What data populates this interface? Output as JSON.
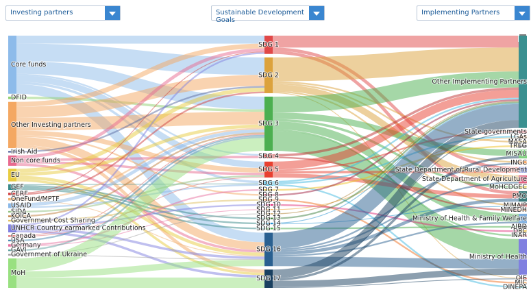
{
  "filters": [
    "Investing partners",
    "Sustainable Development Goals",
    "Implementing Partners"
  ],
  "chart_data": {
    "type": "sankey",
    "columns": [
      [
        {
          "name": "Core funds",
          "color": "#8dbbea"
        },
        {
          "name": "DFID",
          "color": "#90d070"
        },
        {
          "name": "Other Investing partners",
          "color": "#f4a862"
        },
        {
          "name": "Irish Aid",
          "color": "#5a6aa0"
        },
        {
          "name": "Non core funds",
          "color": "#e86a8f"
        },
        {
          "name": "EU",
          "color": "#e8cc40"
        },
        {
          "name": "GEF",
          "color": "#3a8a8a"
        },
        {
          "name": "CERF",
          "color": "#d04040"
        },
        {
          "name": "OneFund/MPTF",
          "color": "#f0b070"
        },
        {
          "name": "USAID",
          "color": "#8ab8e8"
        },
        {
          "name": "SIDA",
          "color": "#90c080"
        },
        {
          "name": "KOICA",
          "color": "#c08040"
        },
        {
          "name": "Government Cost Sharing",
          "color": "#e0c060"
        },
        {
          "name": "UNHCR Country earmarked Contributions",
          "color": "#8080e0"
        },
        {
          "name": "Canada",
          "color": "#e07070"
        },
        {
          "name": "USA",
          "color": "#4a8ab0"
        },
        {
          "name": "Germany",
          "color": "#e870a0"
        },
        {
          "name": "GAVI",
          "color": "#60a0a0"
        },
        {
          "name": "Government of Ukraine",
          "color": "#a0a0a0"
        },
        {
          "name": "MoH",
          "color": "#98e080"
        }
      ],
      [
        {
          "name": "SDG 1",
          "color": "#e04848"
        },
        {
          "name": "SDG 2",
          "color": "#dca23c"
        },
        {
          "name": "SDG 3",
          "color": "#4caf50"
        },
        {
          "name": "SDG 4",
          "color": "#c03030"
        },
        {
          "name": "SDG 5",
          "color": "#e84030"
        },
        {
          "name": "SDG 6",
          "color": "#40b8e0"
        },
        {
          "name": "SDG 7",
          "color": "#f0c020"
        },
        {
          "name": "SDG 8",
          "color": "#a02040"
        },
        {
          "name": "SDG 9",
          "color": "#f07020"
        },
        {
          "name": "SDG 10",
          "color": "#e0307a"
        },
        {
          "name": "SDG 11",
          "color": "#f0a030"
        },
        {
          "name": "SDG 12",
          "color": "#b08030"
        },
        {
          "name": "SDG 13",
          "color": "#408040"
        },
        {
          "name": "SDG 14",
          "color": "#2090d0"
        },
        {
          "name": "SDG 15",
          "color": "#50b050"
        },
        {
          "name": "SDG 16",
          "color": "#2a6090"
        },
        {
          "name": "SDG 17",
          "color": "#1a4060"
        }
      ],
      [
        {
          "name": "Other Implementing Partners",
          "color": "#3a9090"
        },
        {
          "name": "State governments",
          "color": "#e05060"
        },
        {
          "name": "LGAs",
          "color": "#f0b070"
        },
        {
          "name": "MASA",
          "color": "#e0c050"
        },
        {
          "name": "TREG",
          "color": "#404040"
        },
        {
          "name": "MISAU",
          "color": "#80d080"
        },
        {
          "name": "INGC",
          "color": "#f0a060"
        },
        {
          "name": "State Department of Rural Development",
          "color": "#7080d0"
        },
        {
          "name": "State Department of Agriculture",
          "color": "#e06080"
        },
        {
          "name": "MoHCDGEC",
          "color": "#e8d060"
        },
        {
          "name": "PMO",
          "color": "#3a7a7a"
        },
        {
          "name": "MIMAIP",
          "color": "#e04040"
        },
        {
          "name": "MINEDH",
          "color": "#f0b080"
        },
        {
          "name": "Ministry of Health & Family Welfare",
          "color": "#80b0e0"
        },
        {
          "name": "AIRD",
          "color": "#404040"
        },
        {
          "name": "DRC",
          "color": "#e8c050"
        },
        {
          "name": "INAR",
          "color": "#e07080"
        },
        {
          "name": "Ministry of Health",
          "color": "#8080e0"
        },
        {
          "name": "OIE",
          "color": "#e06050"
        },
        {
          "name": "MIC",
          "color": "#f0b070"
        },
        {
          "name": "DINEPA",
          "color": "#40a0a0"
        }
      ]
    ],
    "links": [
      {
        "source": "Core funds",
        "target": "SDG 1",
        "value": 10
      },
      {
        "source": "Core funds",
        "target": "SDG 2",
        "value": 22
      },
      {
        "source": "Core funds",
        "target": "SDG 3",
        "value": 16
      },
      {
        "source": "Core funds",
        "target": "SDG 4",
        "value": 2
      },
      {
        "source": "Core funds",
        "target": "SDG 5",
        "value": 8
      },
      {
        "source": "Core funds",
        "target": "SDG 6",
        "value": 3
      },
      {
        "source": "Core funds",
        "target": "SDG 16",
        "value": 12
      },
      {
        "source": "DFID",
        "target": "SDG 3",
        "value": 3
      },
      {
        "source": "Other Investing partners",
        "target": "SDG 1",
        "value": 6
      },
      {
        "source": "Other Investing partners",
        "target": "SDG 2",
        "value": 14
      },
      {
        "source": "Other Investing partners",
        "target": "SDG 3",
        "value": 16
      },
      {
        "source": "Other Investing partners",
        "target": "SDG 5",
        "value": 6
      },
      {
        "source": "Other Investing partners",
        "target": "SDG 8",
        "value": 2
      },
      {
        "source": "Other Investing partners",
        "target": "SDG 16",
        "value": 10
      },
      {
        "source": "Other Investing partners",
        "target": "SDG 17",
        "value": 4
      },
      {
        "source": "Irish Aid",
        "target": "SDG 2",
        "value": 2
      },
      {
        "source": "Non core funds",
        "target": "SDG 1",
        "value": 4
      },
      {
        "source": "Non core funds",
        "target": "SDG 4",
        "value": 3
      },
      {
        "source": "Non core funds",
        "target": "SDG 5",
        "value": 3
      },
      {
        "source": "Non core funds",
        "target": "SDG 16",
        "value": 3
      },
      {
        "source": "EU",
        "target": "SDG 2",
        "value": 5
      },
      {
        "source": "EU",
        "target": "SDG 3",
        "value": 4
      },
      {
        "source": "EU",
        "target": "SDG 16",
        "value": 4
      },
      {
        "source": "EU",
        "target": "SDG 17",
        "value": 3
      },
      {
        "source": "GEF",
        "target": "SDG 6",
        "value": 1
      },
      {
        "source": "GEF",
        "target": "SDG 13",
        "value": 2
      },
      {
        "source": "GEF",
        "target": "SDG 14",
        "value": 2
      },
      {
        "source": "GEF",
        "target": "SDG 15",
        "value": 2
      },
      {
        "source": "CERF",
        "target": "SDG 1",
        "value": 1
      },
      {
        "source": "CERF",
        "target": "SDG 2",
        "value": 2
      },
      {
        "source": "OneFund/MPTF",
        "target": "SDG 3",
        "value": 2
      },
      {
        "source": "OneFund/MPTF",
        "target": "SDG 16",
        "value": 1
      },
      {
        "source": "USAID",
        "target": "SDG 3",
        "value": 4
      },
      {
        "source": "USAID",
        "target": "SDG 6",
        "value": 2
      },
      {
        "source": "SIDA",
        "target": "SDG 5",
        "value": 2
      },
      {
        "source": "KOICA",
        "target": "SDG 3",
        "value": 2
      },
      {
        "source": "Government Cost Sharing",
        "target": "SDG 9",
        "value": 2
      },
      {
        "source": "UNHCR Country earmarked Contributions",
        "target": "SDG 1",
        "value": 2
      },
      {
        "source": "UNHCR Country earmarked Contributions",
        "target": "SDG 10",
        "value": 2
      },
      {
        "source": "UNHCR Country earmarked Contributions",
        "target": "SDG 16",
        "value": 3
      },
      {
        "source": "UNHCR Country earmarked Contributions",
        "target": "SDG 17",
        "value": 3
      },
      {
        "source": "Canada",
        "target": "SDG 3",
        "value": 1
      },
      {
        "source": "Canada",
        "target": "SDG 5",
        "value": 1
      },
      {
        "source": "USA",
        "target": "SDG 3",
        "value": 2
      },
      {
        "source": "Germany",
        "target": "SDG 7",
        "value": 2
      },
      {
        "source": "Germany",
        "target": "SDG 11",
        "value": 1
      },
      {
        "source": "GAVI",
        "target": "SDG 3",
        "value": 2
      },
      {
        "source": "Government of Ukraine",
        "target": "SDG 12",
        "value": 1
      },
      {
        "source": "Government of Ukraine",
        "target": "SDG 16",
        "value": 1
      },
      {
        "source": "MoH",
        "target": "SDG 3",
        "value": 16
      },
      {
        "source": "MoH",
        "target": "SDG 16",
        "value": 8
      },
      {
        "source": "MoH",
        "target": "SDG 17",
        "value": 13
      },
      {
        "source": "SDG 1",
        "target": "Other Implementing Partners",
        "value": 15
      },
      {
        "source": "SDG 1",
        "target": "State Department of Rural Development",
        "value": 4
      },
      {
        "source": "SDG 1",
        "target": "PMO",
        "value": 4
      },
      {
        "source": "SDG 2",
        "target": "Other Implementing Partners",
        "value": 30
      },
      {
        "source": "SDG 2",
        "target": "MASA",
        "value": 2
      },
      {
        "source": "SDG 2",
        "target": "INGC",
        "value": 2
      },
      {
        "source": "SDG 2",
        "target": "State Department of Agriculture",
        "value": 8
      },
      {
        "source": "SDG 2",
        "target": "MIMAIP",
        "value": 2
      },
      {
        "source": "SDG 2",
        "target": "OIE",
        "value": 1
      },
      {
        "source": "SDG 3",
        "target": "Other Implementing Partners",
        "value": 20
      },
      {
        "source": "SDG 3",
        "target": "MISAU",
        "value": 8
      },
      {
        "source": "SDG 3",
        "target": "MoHCDGEC",
        "value": 3
      },
      {
        "source": "SDG 3",
        "target": "Ministry of Health & Family Welfare",
        "value": 10
      },
      {
        "source": "SDG 3",
        "target": "INAR",
        "value": 2
      },
      {
        "source": "SDG 3",
        "target": "Ministry of Health",
        "value": 25
      },
      {
        "source": "SDG 4",
        "target": "Other Implementing Partners",
        "value": 3
      },
      {
        "source": "SDG 4",
        "target": "MINEDH",
        "value": 2
      },
      {
        "source": "SDG 5",
        "target": "Other Implementing Partners",
        "value": 10
      },
      {
        "source": "SDG 5",
        "target": "State governments",
        "value": 2
      },
      {
        "source": "SDG 5",
        "target": "State Department of Rural Development",
        "value": 3
      },
      {
        "source": "SDG 5",
        "target": "PMO",
        "value": 5
      },
      {
        "source": "SDG 6",
        "target": "Other Implementing Partners",
        "value": 2
      },
      {
        "source": "SDG 6",
        "target": "LGAs",
        "value": 2
      },
      {
        "source": "SDG 6",
        "target": "DINEPA",
        "value": 2
      },
      {
        "source": "SDG 7",
        "target": "TREG",
        "value": 2
      },
      {
        "source": "SDG 8",
        "target": "Other Implementing Partners",
        "value": 2
      },
      {
        "source": "SDG 9",
        "target": "MIC",
        "value": 2
      },
      {
        "source": "SDG 10",
        "target": "DRC",
        "value": 2
      },
      {
        "source": "SDG 11",
        "target": "LGAs",
        "value": 1
      },
      {
        "source": "SDG 12",
        "target": "Other Implementing Partners",
        "value": 1
      },
      {
        "source": "SDG 13",
        "target": "Other Implementing Partners",
        "value": 2
      },
      {
        "source": "SDG 14",
        "target": "Other Implementing Partners",
        "value": 1
      },
      {
        "source": "SDG 14",
        "target": "MIMAIP",
        "value": 1
      },
      {
        "source": "SDG 15",
        "target": "AIRD",
        "value": 2
      },
      {
        "source": "SDG 16",
        "target": "Other Implementing Partners",
        "value": 20
      },
      {
        "source": "SDG 16",
        "target": "INGC",
        "value": 2
      },
      {
        "source": "SDG 16",
        "target": "State Department of Agriculture",
        "value": 2
      },
      {
        "source": "SDG 16",
        "target": "PMO",
        "value": 4
      },
      {
        "source": "SDG 16",
        "target": "Ministry of Health & Family Welfare",
        "value": 2
      },
      {
        "source": "SDG 16",
        "target": "Ministry of Health",
        "value": 12
      },
      {
        "source": "SDG 17",
        "target": "Other Implementing Partners",
        "value": 10
      },
      {
        "source": "SDG 17",
        "target": "State governments",
        "value": 1
      },
      {
        "source": "SDG 17",
        "target": "MISAU",
        "value": 3
      },
      {
        "source": "SDG 17",
        "target": "Ministry of Health",
        "value": 8
      },
      {
        "source": "SDG 17",
        "target": "OIE",
        "value": 1
      }
    ]
  }
}
